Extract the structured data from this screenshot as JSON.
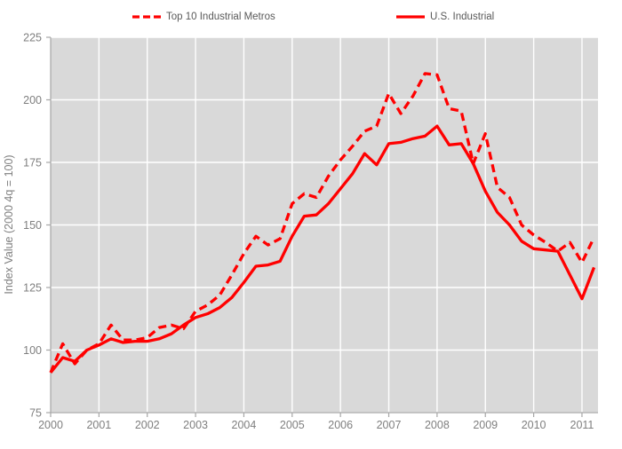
{
  "chart_data": {
    "type": "line",
    "title": "",
    "xlabel": "",
    "ylabel": "Index Value (2000 4q = 100)",
    "ylim": [
      75,
      225
    ],
    "yticks": [
      75,
      100,
      125,
      150,
      175,
      200,
      225
    ],
    "xtick_labels": [
      "2000",
      "2001",
      "2002",
      "2003",
      "2004",
      "2005",
      "2006",
      "2007",
      "2008",
      "2009",
      "2010",
      "2011"
    ],
    "grid": true,
    "legend_position": "top",
    "colors": {
      "line": "#ff0000",
      "plot_background": "#d9d9d9",
      "gridline": "#ffffff",
      "axis": "#a6a6a6",
      "tick_label": "#7f7f7f",
      "legend_text": "#595959"
    },
    "categories": [
      "2000 Q1",
      "2000 Q2",
      "2000 Q3",
      "2000 Q4",
      "2001 Q1",
      "2001 Q2",
      "2001 Q3",
      "2001 Q4",
      "2002 Q1",
      "2002 Q2",
      "2002 Q3",
      "2002 Q4",
      "2003 Q1",
      "2003 Q2",
      "2003 Q3",
      "2003 Q4",
      "2004 Q1",
      "2004 Q2",
      "2004 Q3",
      "2004 Q4",
      "2005 Q1",
      "2005 Q2",
      "2005 Q3",
      "2005 Q4",
      "2006 Q1",
      "2006 Q2",
      "2006 Q3",
      "2006 Q4",
      "2007 Q1",
      "2007 Q2",
      "2007 Q3",
      "2007 Q4",
      "2008 Q1",
      "2008 Q2",
      "2008 Q3",
      "2008 Q4",
      "2009 Q1",
      "2009 Q2",
      "2009 Q3",
      "2009 Q4",
      "2010 Q1",
      "2010 Q2",
      "2010 Q3",
      "2010 Q4",
      "2011 Q1",
      "2011 Q2"
    ],
    "series": [
      {
        "name": "Top 10 Industrial Metros",
        "style": "dashed",
        "color": "#ff0000",
        "values": [
          91,
          102.5,
          94.5,
          100,
          102.5,
          110,
          104,
          104,
          105,
          109,
          110,
          108.5,
          115.5,
          118,
          122,
          130,
          138.5,
          145.5,
          142,
          144.5,
          158.5,
          162.5,
          161,
          169.5,
          176,
          181.5,
          187.5,
          189.5,
          202.5,
          194.5,
          201.5,
          210.5,
          210,
          196.5,
          195.5,
          174.5,
          186.5,
          165,
          161,
          150,
          146,
          143,
          139.5,
          143,
          135,
          145
        ]
      },
      {
        "name": "U.S. Industrial",
        "style": "solid",
        "color": "#ff0000",
        "values": [
          91,
          97,
          95.5,
          100,
          102,
          104.5,
          103,
          103.5,
          103.5,
          104.5,
          106.5,
          110,
          113,
          114.5,
          117,
          121,
          127,
          133.5,
          134,
          135.5,
          145.5,
          153.5,
          154,
          158.5,
          164.5,
          170.5,
          178.5,
          174,
          182.5,
          183,
          184.5,
          185.5,
          189.5,
          182,
          182.5,
          174.5,
          163.5,
          155,
          150,
          143.5,
          140.5,
          140,
          139.5,
          130,
          120.5,
          133
        ]
      }
    ]
  }
}
